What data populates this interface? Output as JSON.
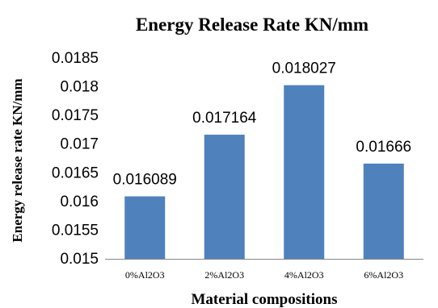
{
  "chart_data": {
    "type": "bar",
    "title": "Energy Release Rate KN/mm",
    "xlabel": "Material compositions",
    "ylabel": "Energy  release rate KN/mm",
    "categories": [
      "0%Al2O3",
      "2%Al2O3",
      "4%Al2O3",
      "6%Al2O3"
    ],
    "values": [
      0.016089,
      0.017164,
      0.018027,
      0.01666
    ],
    "data_labels": [
      "0.016089",
      "0.017164",
      "0.018027",
      "0.01666"
    ],
    "ylim": [
      0.015,
      0.0185
    ],
    "yticks": [
      "0.015",
      "0.0155",
      "0.016",
      "0.0165",
      "0.017",
      "0.0175",
      "0.018",
      "0.0185"
    ],
    "grid": false,
    "legend": "none",
    "colors": {
      "bar": "#4f81bd"
    }
  }
}
